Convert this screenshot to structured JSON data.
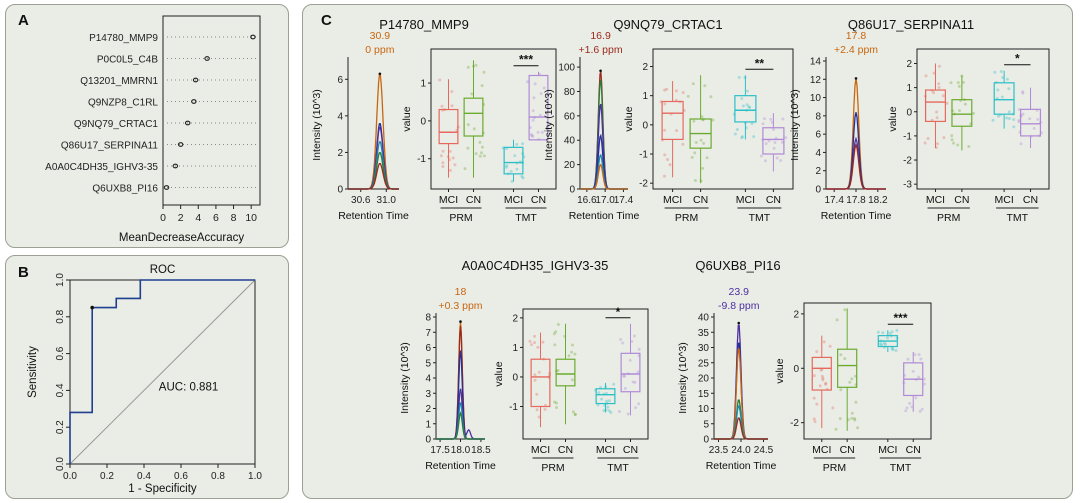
{
  "panel_a": {
    "label": "A",
    "chart_data": {
      "type": "scatter",
      "categories": [
        "P14780_MMP9",
        "P0C0L5_C4B",
        "Q13201_MMRN1",
        "Q9NZP8_C1RL",
        "Q9NQ79_CRTAC1",
        "Q86U17_SERPINA11",
        "A0A0C4DH35_IGHV3-35",
        "Q6UXB8_PI16"
      ],
      "values": [
        10.2,
        5.0,
        3.7,
        3.5,
        2.8,
        2.0,
        1.4,
        0.4
      ],
      "xlabel": "MeanDecreaseAccuracy",
      "xticks": [
        "0",
        "2",
        "4",
        "6",
        "8",
        "10"
      ],
      "xlim": [
        0,
        11
      ]
    }
  },
  "panel_b": {
    "label": "B",
    "chart_data": {
      "type": "line",
      "title": "ROC",
      "xlabel": "1 - Specificity",
      "ylabel": "Sensitivity",
      "x": [
        0,
        0,
        0.12,
        0.12,
        0.18,
        0.25,
        0.25,
        0.38,
        0.38,
        1.0
      ],
      "y": [
        0,
        0.28,
        0.28,
        0.85,
        0.85,
        0.85,
        0.9,
        0.9,
        1.0,
        1.0
      ],
      "marker": {
        "x": 0.12,
        "y": 0.85
      },
      "annotation": "AUC: 0.881",
      "xticks": [
        "0.0",
        "0.2",
        "0.4",
        "0.6",
        "0.8",
        "1.0"
      ],
      "yticks": [
        "0.0",
        "0.2",
        "0.4",
        "0.6",
        "0.8",
        "1.0"
      ],
      "xlim": [
        0,
        1
      ],
      "ylim": [
        0,
        1
      ]
    }
  },
  "panel_c": {
    "label": "C",
    "chart_data": [
      {
        "title": "P14780_MMP9",
        "chrom": {
          "peak_label": "30.9",
          "ppm_label": "0 ppm",
          "peak_color": "#c8670f",
          "xlabel": "Retention Time",
          "ylabel": "Intensity (10^3)",
          "xlim": [
            30.4,
            31.2
          ],
          "ylim": [
            0,
            7
          ],
          "xticks": [
            {
              "v": 30.6,
              "t": "30.6"
            },
            {
              "v": 31.0,
              "t": "31.0"
            }
          ],
          "yticks": [
            {
              "v": 0,
              "t": "0"
            },
            {
              "v": 2,
              "t": "2"
            },
            {
              "v": 4,
              "t": "4"
            },
            {
              "v": 6,
              "t": "6"
            }
          ],
          "center": 30.9,
          "width": 0.05,
          "traces": [
            {
              "color": "#c8670f",
              "height": 6.3
            },
            {
              "color": "#24319a",
              "height": 3.6
            },
            {
              "color": "#4d2fa0",
              "height": 3.4
            },
            {
              "color": "#1f8aa8",
              "height": 2.6
            },
            {
              "color": "#2b7d3a",
              "height": 2.0
            },
            {
              "color": "#9c2a1c",
              "height": 1.4
            }
          ]
        },
        "box": {
          "ylabel": "value",
          "ylim": [
            -1.8,
            1.9
          ],
          "yticks": [
            {
              "v": -1,
              "t": "-1"
            },
            {
              "v": 0,
              "t": "0"
            },
            {
              "v": 1,
              "t": "1"
            }
          ],
          "groups": [
            {
              "label": "MCI",
              "color": "#e5695d",
              "q1": -0.6,
              "med": -0.3,
              "q3": 0.3,
              "lo": -1.5,
              "hi": 1.1
            },
            {
              "label": "CN",
              "color": "#6aab2f",
              "q1": -0.4,
              "med": 0.2,
              "q3": 0.6,
              "lo": -1.5,
              "hi": 1.6
            },
            {
              "label": "MCI",
              "color": "#2bbfc7",
              "q1": -1.4,
              "med": -1.1,
              "q3": -0.7,
              "lo": -1.6,
              "hi": -0.5
            },
            {
              "label": "CN",
              "color": "#b08ad6",
              "q1": -0.5,
              "med": 0.1,
              "q3": 1.2,
              "lo": -0.5,
              "hi": 1.3
            }
          ],
          "sig": "***",
          "platforms": [
            "PRM",
            "TMT"
          ]
        }
      },
      {
        "title": "Q9NQ79_CRTAC1",
        "chrom": {
          "peak_label": "16.9",
          "ppm_label": "+1.6 ppm",
          "peak_color": "#9c2a1c",
          "xlabel": "Retention Time",
          "ylabel": "Intensity (10^3)",
          "xlim": [
            16.45,
            17.5
          ],
          "ylim": [
            0,
            105
          ],
          "xticks": [
            {
              "v": 16.6,
              "t": "16.6"
            },
            {
              "v": 17.0,
              "t": "17.0"
            },
            {
              "v": 17.4,
              "t": "17.4"
            }
          ],
          "yticks": [
            {
              "v": 0,
              "t": "0"
            },
            {
              "v": 20,
              "t": "20"
            },
            {
              "v": 40,
              "t": "40"
            },
            {
              "v": 60,
              "t": "60"
            },
            {
              "v": 80,
              "t": "80"
            },
            {
              "v": 100,
              "t": "100"
            }
          ],
          "center": 16.9,
          "width": 0.05,
          "traces": [
            {
              "color": "#9c2a1c",
              "height": 97
            },
            {
              "color": "#2b7d3a",
              "height": 90
            },
            {
              "color": "#4d2fa0",
              "height": 70
            },
            {
              "color": "#24319a",
              "height": 44
            },
            {
              "color": "#1f8aa8",
              "height": 28
            },
            {
              "color": "#c8670f",
              "height": 20
            }
          ]
        },
        "box": {
          "ylabel": "value",
          "ylim": [
            -2.2,
            2.6
          ],
          "yticks": [
            {
              "v": -2,
              "t": "-2"
            },
            {
              "v": -1,
              "t": "-1"
            },
            {
              "v": 0,
              "t": "0"
            },
            {
              "v": 1,
              "t": "1"
            },
            {
              "v": 2,
              "t": "2"
            }
          ],
          "groups": [
            {
              "label": "MCI",
              "color": "#e5695d",
              "q1": -0.5,
              "med": 0.4,
              "q3": 0.8,
              "lo": -1.8,
              "hi": 1.5
            },
            {
              "label": "CN",
              "color": "#6aab2f",
              "q1": -0.8,
              "med": -0.3,
              "q3": 0.2,
              "lo": -2.0,
              "hi": 1.7
            },
            {
              "label": "MCI",
              "color": "#2bbfc7",
              "q1": 0.1,
              "med": 0.5,
              "q3": 1.0,
              "lo": -0.5,
              "hi": 1.7
            },
            {
              "label": "CN",
              "color": "#b08ad6",
              "q1": -1.0,
              "med": -0.5,
              "q3": -0.1,
              "lo": -1.6,
              "hi": 0.4
            }
          ],
          "sig": "**",
          "platforms": [
            "PRM",
            "TMT"
          ]
        }
      },
      {
        "title": "Q86U17_SERPINA11",
        "chrom": {
          "peak_label": "17.8",
          "ppm_label": "+2.4 ppm",
          "peak_color": "#c8670f",
          "xlabel": "Retention Time",
          "ylabel": "Intensity (10^3)",
          "xlim": [
            17.25,
            18.35
          ],
          "ylim": [
            0,
            14
          ],
          "xticks": [
            {
              "v": 17.4,
              "t": "17.4"
            },
            {
              "v": 17.8,
              "t": "17.8"
            },
            {
              "v": 18.2,
              "t": "18.2"
            }
          ],
          "yticks": [
            {
              "v": 0,
              "t": "0"
            },
            {
              "v": 2,
              "t": "2"
            },
            {
              "v": 4,
              "t": "4"
            },
            {
              "v": 6,
              "t": "6"
            },
            {
              "v": 8,
              "t": "8"
            },
            {
              "v": 10,
              "t": "10"
            },
            {
              "v": 12,
              "t": "12"
            },
            {
              "v": 14,
              "t": "14"
            }
          ],
          "center": 17.8,
          "width": 0.05,
          "traces": [
            {
              "color": "#c8670f",
              "height": 12.1
            },
            {
              "color": "#24319a",
              "height": 8.4
            },
            {
              "color": "#4d2fa0",
              "height": 5.5
            },
            {
              "color": "#9c2a1c",
              "height": 4.8
            }
          ]
        },
        "box": {
          "ylabel": "value",
          "ylim": [
            -3.2,
            2.6
          ],
          "yticks": [
            {
              "v": -3,
              "t": "-3"
            },
            {
              "v": -2,
              "t": "-2"
            },
            {
              "v": -1,
              "t": "-1"
            },
            {
              "v": 0,
              "t": "0"
            },
            {
              "v": 1,
              "t": "1"
            },
            {
              "v": 2,
              "t": "2"
            }
          ],
          "groups": [
            {
              "label": "MCI",
              "color": "#e5695d",
              "q1": -0.4,
              "med": 0.4,
              "q3": 0.9,
              "lo": -1.5,
              "hi": 2.0
            },
            {
              "label": "CN",
              "color": "#6aab2f",
              "q1": -0.6,
              "med": -0.1,
              "q3": 0.5,
              "lo": -1.6,
              "hi": 1.5
            },
            {
              "label": "MCI",
              "color": "#2bbfc7",
              "q1": -0.1,
              "med": 0.5,
              "q3": 1.2,
              "lo": -0.7,
              "hi": 1.7
            },
            {
              "label": "CN",
              "color": "#b08ad6",
              "q1": -1.0,
              "med": -0.5,
              "q3": 0.1,
              "lo": -1.5,
              "hi": 1.0
            }
          ],
          "sig": "*",
          "platforms": [
            "PRM",
            "TMT"
          ]
        }
      },
      {
        "title": "A0A0C4DH35_IGHV3-35",
        "chrom": {
          "peak_label": "18",
          "ppm_label": "+0.3 ppm",
          "peak_color": "#c8670f",
          "xlabel": "Retention Time",
          "ylabel": "Intensity (10^3)",
          "xlim": [
            17.4,
            18.6
          ],
          "ylim": [
            0,
            8
          ],
          "xticks": [
            {
              "v": 17.5,
              "t": "17.5"
            },
            {
              "v": 18.0,
              "t": "18.0"
            },
            {
              "v": 18.5,
              "t": "18.5"
            }
          ],
          "yticks": [
            {
              "v": 0,
              "t": "0"
            },
            {
              "v": 1,
              "t": "1"
            },
            {
              "v": 2,
              "t": "2"
            },
            {
              "v": 3,
              "t": "3"
            },
            {
              "v": 4,
              "t": "4"
            },
            {
              "v": 5,
              "t": "5"
            },
            {
              "v": 6,
              "t": "6"
            },
            {
              "v": 7,
              "t": "7"
            },
            {
              "v": 8,
              "t": "8"
            }
          ],
          "center": 18.0,
          "width": 0.045,
          "traces": [
            {
              "color": "#c8670f",
              "height": 7.7
            },
            {
              "color": "#9c2a1c",
              "height": 7.4
            },
            {
              "color": "#24319a",
              "height": 5.8
            },
            {
              "color": "#4d2fa0",
              "height": 3.3
            },
            {
              "color": "#1f8aa8",
              "height": 2.4
            },
            {
              "color": "#2b7d3a",
              "height": 1.7
            }
          ],
          "secondary": {
            "center": 18.2,
            "height": 0.6,
            "color": "#4d2fa0"
          }
        },
        "box": {
          "ylabel": "value",
          "ylim": [
            -2.1,
            2.3
          ],
          "yticks": [
            {
              "v": -1,
              "t": "-1"
            },
            {
              "v": 0,
              "t": "0"
            },
            {
              "v": 1,
              "t": "1"
            },
            {
              "v": 2,
              "t": "2"
            }
          ],
          "groups": [
            {
              "label": "MCI",
              "color": "#e5695d",
              "q1": -1.0,
              "med": 0.0,
              "q3": 0.6,
              "lo": -1.7,
              "hi": 1.5
            },
            {
              "label": "CN",
              "color": "#6aab2f",
              "q1": -0.3,
              "med": 0.1,
              "q3": 0.6,
              "lo": -1.6,
              "hi": 1.8
            },
            {
              "label": "MCI",
              "color": "#2bbfc7",
              "q1": -0.9,
              "med": -0.6,
              "q3": -0.4,
              "lo": -1.2,
              "hi": -0.2
            },
            {
              "label": "CN",
              "color": "#b08ad6",
              "q1": -0.5,
              "med": 0.1,
              "q3": 0.8,
              "lo": -1.3,
              "hi": 1.8
            }
          ],
          "sig": "*",
          "platforms": [
            "PRM",
            "TMT"
          ]
        }
      },
      {
        "title": "Q6UXB8_PI16",
        "chrom": {
          "peak_label": "23.9",
          "ppm_label": "-9.8 ppm",
          "peak_color": "#4d2fa0",
          "xlabel": "Retention Time",
          "ylabel": "Intensity (10^3)",
          "xlim": [
            23.4,
            24.6
          ],
          "ylim": [
            0,
            40
          ],
          "xticks": [
            {
              "v": 23.5,
              "t": "23.5"
            },
            {
              "v": 24.0,
              "t": "24.0"
            },
            {
              "v": 24.5,
              "t": "24.5"
            }
          ],
          "yticks": [
            {
              "v": 0,
              "t": "0"
            },
            {
              "v": 5,
              "t": "5"
            },
            {
              "v": 10,
              "t": "10"
            },
            {
              "v": 15,
              "t": "15"
            },
            {
              "v": 20,
              "t": "20"
            },
            {
              "v": 25,
              "t": "25"
            },
            {
              "v": 30,
              "t": "30"
            },
            {
              "v": 35,
              "t": "35"
            },
            {
              "v": 40,
              "t": "40"
            }
          ],
          "center": 23.95,
          "width": 0.05,
          "traces": [
            {
              "color": "#4d2fa0",
              "height": 38
            },
            {
              "color": "#24319a",
              "height": 32
            },
            {
              "color": "#c8670f",
              "height": 30
            },
            {
              "color": "#2b7d3a",
              "height": 13
            },
            {
              "color": "#1f8aa8",
              "height": 11
            },
            {
              "color": "#9c2a1c",
              "height": 7
            }
          ]
        },
        "box": {
          "ylabel": "value",
          "ylim": [
            -2.6,
            2.4
          ],
          "yticks": [
            {
              "v": -2,
              "t": "-2"
            },
            {
              "v": 0,
              "t": "0"
            },
            {
              "v": 2,
              "t": "2"
            }
          ],
          "groups": [
            {
              "label": "MCI",
              "color": "#e5695d",
              "q1": -0.8,
              "med": 0.0,
              "q3": 0.4,
              "lo": -2.2,
              "hi": 1.2
            },
            {
              "label": "CN",
              "color": "#6aab2f",
              "q1": -0.7,
              "med": 0.1,
              "q3": 0.7,
              "lo": -2.3,
              "hi": 2.2
            },
            {
              "label": "MCI",
              "color": "#2bbfc7",
              "q1": 0.8,
              "med": 1.0,
              "q3": 1.2,
              "lo": 0.6,
              "hi": 1.4
            },
            {
              "label": "CN",
              "color": "#b08ad6",
              "q1": -1.0,
              "med": -0.4,
              "q3": 0.2,
              "lo": -1.6,
              "hi": 0.6
            }
          ],
          "sig": "***",
          "platforms": [
            "PRM",
            "TMT"
          ]
        }
      }
    ]
  }
}
